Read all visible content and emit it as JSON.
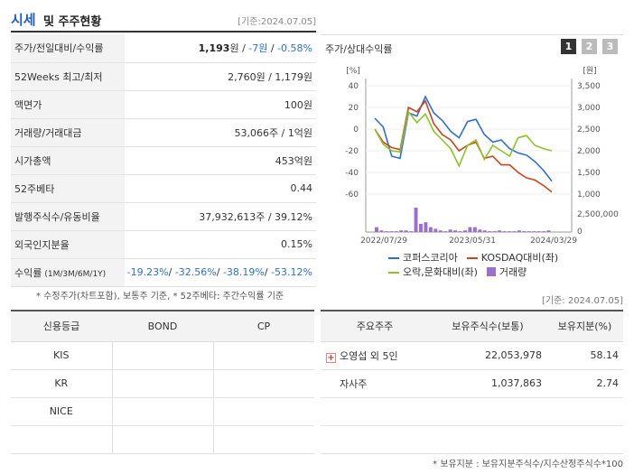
{
  "header": {
    "title_main": "시세",
    "title_sub": "및 주주현황",
    "date": "[기준:2024.07.05]"
  },
  "info_rows": [
    {
      "key": "주가/전일대비/수익률",
      "value_parts": [
        {
          "text": "1,193",
          "cls": "b"
        },
        {
          "text": "원 / ",
          "cls": ""
        },
        {
          "text": "-7원",
          "cls": "blue"
        },
        {
          "text": " / ",
          "cls": ""
        },
        {
          "text": "-0.58%",
          "cls": "blue"
        }
      ]
    },
    {
      "key": "52Weeks 최고/최저",
      "value_parts": [
        {
          "text": "2,760원 / 1,179원",
          "cls": ""
        }
      ]
    },
    {
      "key": "액면가",
      "value_parts": [
        {
          "text": "100원",
          "cls": ""
        }
      ]
    },
    {
      "key": "거래량/거래대금",
      "value_parts": [
        {
          "text": "53,066주 / 1억원",
          "cls": ""
        }
      ]
    },
    {
      "key": "시가총액",
      "value_parts": [
        {
          "text": "453억원",
          "cls": ""
        }
      ]
    },
    {
      "key": "52주베타",
      "value_parts": [
        {
          "text": "0.44",
          "cls": ""
        }
      ]
    },
    {
      "key": "발행주식수/유동비율",
      "value_parts": [
        {
          "text": "37,932,613주 / 39.12%",
          "cls": ""
        }
      ]
    },
    {
      "key": "외국인지분율",
      "value_parts": [
        {
          "text": "0.15%",
          "cls": ""
        }
      ]
    },
    {
      "key": "수익률",
      "key_sub": "(1M/3M/6M/1Y)",
      "value_parts": [
        {
          "text": "-19.23%",
          "cls": "blue"
        },
        {
          "text": "/ ",
          "cls": ""
        },
        {
          "text": "-32.56%",
          "cls": "blue"
        },
        {
          "text": "/ ",
          "cls": ""
        },
        {
          "text": "-38.19%",
          "cls": "blue"
        },
        {
          "text": "/ ",
          "cls": ""
        },
        {
          "text": "-53.12%",
          "cls": "blue"
        }
      ]
    }
  ],
  "note_left": "* 수정주가(차트포함), 보통주 기준, * 52주베타: 주간수익률 기준",
  "chart_panel": {
    "title": "주가/상대수익률",
    "tabs": [
      "1",
      "2",
      "3"
    ]
  },
  "chart_data": {
    "type": "line",
    "left_axis_unit": "[%]",
    "right_axis_unit": "[원]",
    "left_ticks": [
      "40",
      "20",
      "0",
      "-20",
      "-40",
      "-60"
    ],
    "right_ticks": [
      "3,500",
      "3,000",
      "2,500",
      "2,000",
      "1,500",
      "1,000"
    ],
    "volume_tick": "2,500,000",
    "volume_zero": "0",
    "x_labels": [
      "2022/07/29",
      "2023/05/31",
      "2024/03/29"
    ],
    "ylim": [
      -60,
      40
    ],
    "series": [
      {
        "name": "코퍼스코리아",
        "color": "#2f6fd0",
        "values": [
          10,
          2,
          -25,
          -27,
          15,
          12,
          30,
          15,
          8,
          -2,
          -8,
          7,
          9,
          -5,
          -12,
          -10,
          -18,
          -22,
          -24,
          -30,
          -38,
          -48
        ]
      },
      {
        "name": "KOSDAQ대비(좌)",
        "color": "#d0421b",
        "values": [
          0,
          -12,
          -17,
          -19,
          20,
          16,
          26,
          5,
          -5,
          -10,
          -20,
          -15,
          -12,
          -27,
          -25,
          -33,
          -33,
          -40,
          -45,
          -47,
          -52,
          -58
        ]
      },
      {
        "name": "오락,문화대비(좌)",
        "color": "#8ac426",
        "values": [
          0,
          -14,
          -20,
          -21,
          16,
          6,
          14,
          -2,
          -10,
          -18,
          -34,
          -15,
          -10,
          -28,
          -15,
          -20,
          -25,
          -8,
          -6,
          -15,
          -18,
          -20
        ]
      }
    ],
    "volume": {
      "name": "거래량",
      "color": "#9a6fd0",
      "values": [
        6,
        2,
        1,
        1,
        1,
        2,
        2,
        1,
        30,
        10,
        12,
        6,
        4,
        2,
        1,
        3,
        2,
        1,
        2,
        6,
        6,
        3,
        2,
        1,
        1,
        2,
        1,
        1,
        1,
        2,
        1,
        1,
        1,
        1,
        1,
        2
      ]
    }
  },
  "date2": "[기준: 2024.07.05]",
  "credit": {
    "headers": [
      "신용등급",
      "BOND",
      "CP"
    ],
    "rows": [
      [
        "KIS",
        "",
        ""
      ],
      [
        "KR",
        "",
        ""
      ],
      [
        "NICE",
        "",
        ""
      ],
      [
        "",
        "",
        ""
      ]
    ]
  },
  "holders": {
    "headers": [
      "주요주주",
      "보유주식수(보통)",
      "보유지분(%)"
    ],
    "rows": [
      {
        "name": "오영섭 외 5인",
        "shares": "22,053,978",
        "pct": "58.14",
        "expand": true
      },
      {
        "name": "자사주",
        "shares": "1,037,863",
        "pct": "2.74",
        "expand": false
      }
    ]
  },
  "note_right": "* 보유지분 : 보유지분주식수/지수산정주식수*100"
}
